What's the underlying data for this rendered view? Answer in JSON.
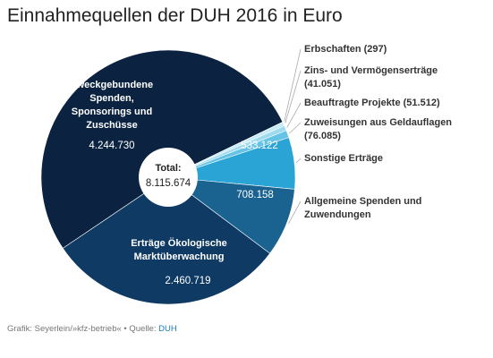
{
  "chart_data": {
    "type": "pie",
    "title": "Einnahmequellen der DUH 2016 in Euro",
    "categories": [
      "Zweckgebundene Spenden, Sponsorings und Zuschüsse",
      "Erbschaften (297)",
      "Zins- und Vermögenserträge (41.051)",
      "Beauftragte Projekte (51.512)",
      "Zuweisungen aus Geldauflagen (76.085)",
      "Sonstige Erträge",
      "Allgemeine Spenden und Zuwendungen",
      "Erträge Ökologische Marktüberwachung"
    ],
    "values": [
      4244730,
      297,
      41051,
      51512,
      76085,
      533122,
      708158,
      2460719
    ],
    "value_labels": [
      "4.244.730",
      null,
      null,
      null,
      null,
      "533.122",
      "708.158",
      "2.460.719"
    ],
    "colors": [
      "#0b2341",
      "#e3f5fb",
      "#c6eaf7",
      "#9ddaf0",
      "#65c3e6",
      "#2aa4d4",
      "#1a6391",
      "#0e3a64"
    ],
    "center_label": "Total:",
    "center_value": "8.115.674",
    "source_prefix": "Grafik: Seyerlein/»kfz-betrieb« • Quelle:",
    "source_link": "DUH"
  }
}
